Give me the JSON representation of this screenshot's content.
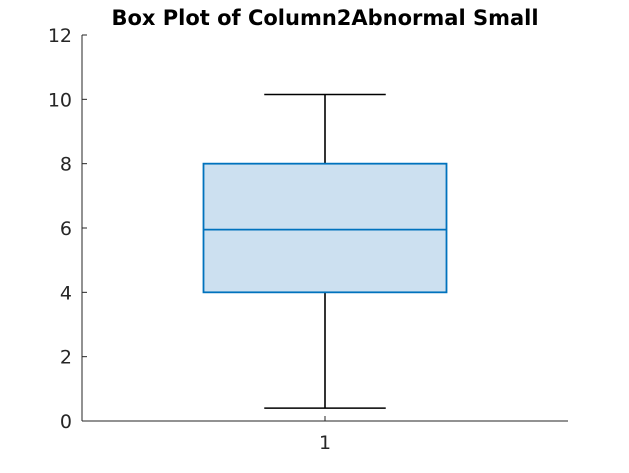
{
  "chart_data": {
    "type": "box",
    "title": "Box Plot of Column2Abnormal Small",
    "xlabel": "",
    "ylabel": "",
    "categories": [
      "1"
    ],
    "boxes": [
      {
        "category": "1",
        "whisker_low": 0.4,
        "q1": 4.0,
        "median": 5.95,
        "q3": 8.0,
        "whisker_high": 10.15
      }
    ],
    "ylim": [
      0,
      12
    ],
    "yticks": [
      0,
      2,
      4,
      6,
      8,
      10,
      12
    ],
    "ytick_labels": [
      "0",
      "2",
      "4",
      "6",
      "8",
      "10",
      "12"
    ],
    "grid": false,
    "legend": false,
    "colors": {
      "box_fill": "#cce0f0",
      "box_edge": "#0072bd",
      "whisker": "#000000",
      "axis": "#262626"
    }
  }
}
